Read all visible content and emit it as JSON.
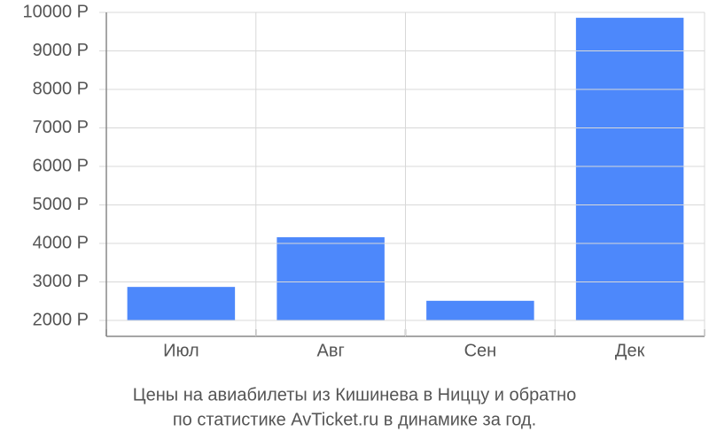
{
  "chart_data": {
    "type": "bar",
    "caption": [
      "Цены на авиабилеты из Кишинева в Ниццу и обратно",
      "по статистике AvTicket.ru в динамике за год."
    ],
    "categories": [
      "Июл",
      "Авг",
      "Сен",
      "Дек"
    ],
    "values": [
      2870,
      4160,
      2510,
      9860
    ],
    "color": "#4d88fb",
    "ylim": [
      2000,
      10000
    ],
    "yticks": [
      {
        "value": 2000,
        "label": "2000 Р"
      },
      {
        "value": 3000,
        "label": "3000 Р"
      },
      {
        "value": 4000,
        "label": "4000 Р"
      },
      {
        "value": 5000,
        "label": "5000 Р"
      },
      {
        "value": 6000,
        "label": "6000 Р"
      },
      {
        "value": 7000,
        "label": "7000 Р"
      },
      {
        "value": 8000,
        "label": "8000 Р"
      },
      {
        "value": 9000,
        "label": "9000 Р"
      },
      {
        "value": 10000,
        "label": "10000 Р"
      }
    ],
    "grid": true
  }
}
